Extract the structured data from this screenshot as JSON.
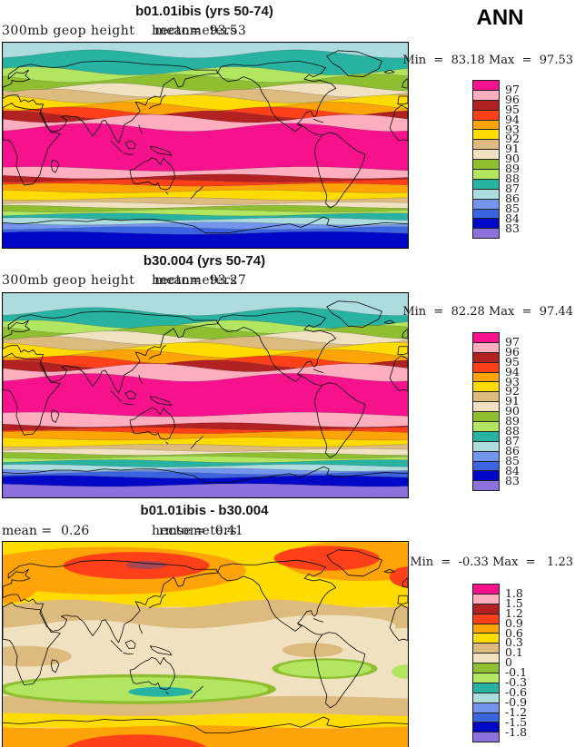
{
  "season_label": "ANN",
  "palette": [
    "#F5128C",
    "#FFAEC0",
    "#B22222",
    "#FF4019",
    "#FFA408",
    "#FFDB00",
    "#DDBA7D",
    "#F0E2C1",
    "#8FBF30",
    "#B2E661",
    "#28B2A2",
    "#ACDCDE",
    "#7396EC",
    "#3C64E0",
    "#0008C8",
    "#8C70DC"
  ],
  "diff_spot_color": "#A84556",
  "panels": [
    {
      "title": "b01.01ibis (yrs 50-74)",
      "field_label": "300mb geop height",
      "mean_label": "mean=",
      "mean_value": "93.53",
      "units": "hectometers",
      "min_label": "Min  =",
      "min_value": "83.18",
      "max_label": "Max  =",
      "max_value": "97.53",
      "colorbar_labels": [
        "97",
        "96",
        "95",
        "94",
        "93",
        "92",
        "91",
        "90",
        "89",
        "88",
        "87",
        "86",
        "85",
        "84",
        "83"
      ]
    },
    {
      "title": "b30.004 (yrs 50-74)",
      "field_label": "300mb geop height",
      "mean_label": "mean=",
      "mean_value": "93.27",
      "units": "hectometers",
      "min_label": "Min  =",
      "min_value": "82.28",
      "max_label": "Max  =",
      "max_value": "97.44",
      "colorbar_labels": [
        "97",
        "96",
        "95",
        "94",
        "93",
        "92",
        "91",
        "90",
        "89",
        "88",
        "87",
        "86",
        "85",
        "84",
        "83"
      ]
    },
    {
      "title": "b01.01ibis - b30.004",
      "mean_label": "mean  =",
      "mean_value": "0.26",
      "rmse_label": "rmse  =",
      "rmse_value": "0.41",
      "units": "hectometers",
      "min_label": "Min  =",
      "min_value": "-0.33",
      "max_label": "Max  =",
      "max_value": "1.23",
      "colorbar_labels": [
        "1.8",
        "1.5",
        "1.2",
        "0.9",
        "0.6",
        "0.3",
        "0.1",
        "0",
        "-0.1",
        "-0.3",
        "-0.6",
        "-0.9",
        "-1.2",
        "-1.5",
        "-1.8"
      ]
    }
  ],
  "chart_data": {
    "type": "heatmap",
    "title": "300mb geop height, ANN",
    "projection": "equirectangular, longitude 0E-360E, latitude 90N-90S",
    "units": "hectometers",
    "maps": [
      {
        "name": "b01.01ibis (yrs 50-74)",
        "mean": 93.53,
        "min": 83.18,
        "max": 97.53,
        "levels": [
          97,
          96,
          95,
          94,
          93,
          92,
          91,
          90,
          89,
          88,
          87,
          86,
          85,
          84,
          83
        ],
        "zonal_bands": [
          {
            "to": 0.055,
            "ci": 11
          },
          {
            "to": 0.138,
            "ci": 10
          },
          {
            "to": 0.174,
            "ci": 9
          },
          {
            "to": 0.217,
            "ci": 8
          },
          {
            "to": 0.246,
            "ci": 7
          },
          {
            "to": 0.275,
            "ci": 6
          },
          {
            "to": 0.309,
            "ci": 5
          },
          {
            "to": 0.333,
            "ci": 4
          },
          {
            "to": 0.352,
            "ci": 3
          },
          {
            "to": 0.37,
            "ci": 2
          },
          {
            "to": 0.413,
            "ci": 1
          },
          {
            "to": 0.616,
            "ci": 0
          },
          {
            "to": 0.652,
            "ci": 1
          },
          {
            "to": 0.674,
            "ci": 2
          },
          {
            "to": 0.693,
            "ci": 3
          },
          {
            "to": 0.725,
            "ci": 4
          },
          {
            "to": 0.761,
            "ci": 5
          },
          {
            "to": 0.783,
            "ci": 6
          },
          {
            "to": 0.8,
            "ci": 7
          },
          {
            "to": 0.819,
            "ci": 8
          },
          {
            "to": 0.838,
            "ci": 9
          },
          {
            "to": 0.86,
            "ci": 10
          },
          {
            "to": 0.882,
            "ci": 11
          },
          {
            "to": 0.904,
            "ci": 12
          },
          {
            "to": 0.928,
            "ci": 13
          },
          {
            "to": 1.0,
            "ci": 14
          }
        ]
      },
      {
        "name": "b30.004 (yrs 50-74)",
        "mean": 93.27,
        "min": 82.28,
        "max": 97.44,
        "levels": [
          97,
          96,
          95,
          94,
          93,
          92,
          91,
          90,
          89,
          88,
          87,
          86,
          85,
          84,
          83
        ],
        "zonal_bands": [
          {
            "to": 0.09,
            "ci": 11
          },
          {
            "to": 0.152,
            "ci": 10
          },
          {
            "to": 0.177,
            "ci": 9
          },
          {
            "to": 0.205,
            "ci": 8
          },
          {
            "to": 0.232,
            "ci": 7
          },
          {
            "to": 0.261,
            "ci": 6
          },
          {
            "to": 0.297,
            "ci": 5
          },
          {
            "to": 0.326,
            "ci": 4
          },
          {
            "to": 0.348,
            "ci": 3
          },
          {
            "to": 0.365,
            "ci": 2
          },
          {
            "to": 0.413,
            "ci": 1
          },
          {
            "to": 0.594,
            "ci": 0
          },
          {
            "to": 0.645,
            "ci": 1
          },
          {
            "to": 0.664,
            "ci": 2
          },
          {
            "to": 0.681,
            "ci": 3
          },
          {
            "to": 0.713,
            "ci": 4
          },
          {
            "to": 0.746,
            "ci": 5
          },
          {
            "to": 0.768,
            "ci": 6
          },
          {
            "to": 0.787,
            "ci": 7
          },
          {
            "to": 0.804,
            "ci": 8
          },
          {
            "to": 0.823,
            "ci": 9
          },
          {
            "to": 0.845,
            "ci": 10
          },
          {
            "to": 0.865,
            "ci": 11
          },
          {
            "to": 0.881,
            "ci": 12
          },
          {
            "to": 0.9,
            "ci": 13
          },
          {
            "to": 0.94,
            "ci": 14
          },
          {
            "to": 1.0,
            "ci": 15
          }
        ]
      },
      {
        "name": "b01.01ibis - b30.004",
        "mean": 0.26,
        "rmse": 0.41,
        "min": -0.33,
        "max": 1.23,
        "levels": [
          1.8,
          1.5,
          1.2,
          0.9,
          0.6,
          0.3,
          0.1,
          0,
          -0.1,
          -0.3,
          -0.6,
          -0.9,
          -1.2,
          -1.5,
          -1.8
        ],
        "background_ci": 7,
        "regions": [
          {
            "k": "band",
            "ci": 5,
            "y0": 0.0,
            "y1": 0.335
          },
          {
            "k": "ell",
            "ci": 4,
            "cx": 0.26,
            "cy": 0.14,
            "rx": 0.34,
            "ry": 0.115
          },
          {
            "k": "ell",
            "ci": 4,
            "cx": 0.89,
            "cy": 0.09,
            "rx": 0.2,
            "ry": 0.1
          },
          {
            "k": "ell",
            "ci": 4,
            "cx": 0.0,
            "cy": 0.2,
            "rx": 0.09,
            "ry": 0.1
          },
          {
            "k": "ell",
            "ci": 3,
            "cx": 0.33,
            "cy": 0.115,
            "rx": 0.18,
            "ry": 0.066
          },
          {
            "k": "spot",
            "cx": 0.355,
            "cy": 0.112,
            "rx": 0.05,
            "ry": 0.02
          },
          {
            "k": "ell",
            "ci": 3,
            "cx": 0.8,
            "cy": 0.08,
            "rx": 0.13,
            "ry": 0.06
          },
          {
            "k": "ell",
            "ci": 3,
            "cx": 1.0,
            "cy": 0.17,
            "rx": 0.045,
            "ry": 0.05
          },
          {
            "k": "band",
            "ci": 6,
            "y0": 0.3,
            "y1": 0.4
          },
          {
            "k": "ell",
            "ci": 7,
            "cx": 0.8,
            "cy": 0.41,
            "rx": 0.17,
            "ry": 0.055
          },
          {
            "k": "ell",
            "ci": 6,
            "cx": 0.055,
            "cy": 0.555,
            "rx": 0.115,
            "ry": 0.05
          },
          {
            "k": "ell",
            "ci": 6,
            "cx": 0.765,
            "cy": 0.525,
            "rx": 0.075,
            "ry": 0.035
          },
          {
            "k": "band",
            "ci": 6,
            "y0": 0.755,
            "y1": 0.85
          },
          {
            "k": "ell",
            "ci": 8,
            "cx": 0.33,
            "cy": 0.715,
            "rx": 0.345,
            "ry": 0.073
          },
          {
            "k": "ell",
            "ci": 8,
            "cx": 0.795,
            "cy": 0.615,
            "rx": 0.13,
            "ry": 0.05
          },
          {
            "k": "ell",
            "ci": 9,
            "cx": 0.33,
            "cy": 0.715,
            "rx": 0.325,
            "ry": 0.058
          },
          {
            "k": "ell",
            "ci": 9,
            "cx": 0.795,
            "cy": 0.615,
            "rx": 0.115,
            "ry": 0.04
          },
          {
            "k": "ell",
            "ci": 9,
            "cx": 1.0,
            "cy": 0.63,
            "rx": 0.04,
            "ry": 0.035
          },
          {
            "k": "ell",
            "ci": 10,
            "cx": 0.39,
            "cy": 0.728,
            "rx": 0.08,
            "ry": 0.024
          },
          {
            "k": "band",
            "ci": 5,
            "y0": 0.838,
            "y1": 0.908
          },
          {
            "k": "band",
            "ci": 4,
            "y0": 0.898,
            "y1": 1.0
          },
          {
            "k": "ell",
            "ci": 3,
            "cx": 0.33,
            "cy": 1.02,
            "rx": 0.18,
            "ry": 0.085
          }
        ]
      }
    ]
  }
}
